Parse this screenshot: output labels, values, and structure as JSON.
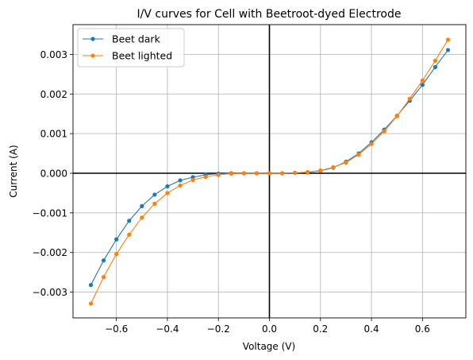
{
  "chart_data": {
    "type": "line",
    "title": "I/V curves for Cell with Beetroot-dyed Electrode",
    "xlabel": "Voltage (V)",
    "ylabel": "Current (A)",
    "xlim": [
      -0.77,
      0.77
    ],
    "ylim": [
      -0.00365,
      0.00375
    ],
    "xticks": [
      -0.6,
      -0.4,
      -0.2,
      0.0,
      0.2,
      0.4,
      0.6
    ],
    "xtick_labels": [
      "−0.6",
      "−0.4",
      "−0.2",
      "0.0",
      "0.2",
      "0.4",
      "0.6"
    ],
    "yticks": [
      -0.003,
      -0.002,
      -0.001,
      0.0,
      0.001,
      0.002,
      0.003
    ],
    "ytick_labels": [
      "−0.003",
      "−0.002",
      "−0.001",
      "0.000",
      "0.001",
      "0.002",
      "0.003"
    ],
    "grid": true,
    "legend_position": "upper-left",
    "reference_lines": {
      "x": 0,
      "y": 0,
      "color": "#000000"
    },
    "x": [
      -0.7,
      -0.65,
      -0.6,
      -0.55,
      -0.5,
      -0.45,
      -0.4,
      -0.35,
      -0.3,
      -0.25,
      -0.2,
      -0.15,
      -0.1,
      -0.05,
      0.0,
      0.05,
      0.1,
      0.15,
      0.2,
      0.25,
      0.3,
      0.35,
      0.4,
      0.45,
      0.5,
      0.55,
      0.6,
      0.65,
      0.7
    ],
    "series": [
      {
        "name": "Beet dark",
        "color": "#1f77b4",
        "values": [
          -0.00282,
          -0.0022,
          -0.00167,
          -0.0012,
          -0.00083,
          -0.00054,
          -0.00033,
          -0.00018,
          -0.0001,
          -4e-05,
          -1e-05,
          0.0,
          0.0,
          0.0,
          0.0,
          0.0,
          1e-05,
          2e-05,
          6e-05,
          0.00014,
          0.00029,
          0.0005,
          0.00078,
          0.0011,
          0.00145,
          0.00183,
          0.00223,
          0.00268,
          0.00311
        ]
      },
      {
        "name": "Beet lighted",
        "color": "#ff7f0e",
        "values": [
          -0.00329,
          -0.00262,
          -0.00204,
          -0.00155,
          -0.00112,
          -0.00077,
          -0.0005,
          -0.00031,
          -0.00017,
          -9e-05,
          -4e-05,
          -1e-05,
          0.0,
          0.0,
          0.0,
          0.0,
          1e-05,
          3e-05,
          7e-05,
          0.00015,
          0.00027,
          0.00047,
          0.00074,
          0.00106,
          0.00144,
          0.00188,
          0.00234,
          0.00284,
          0.00337
        ]
      }
    ]
  }
}
